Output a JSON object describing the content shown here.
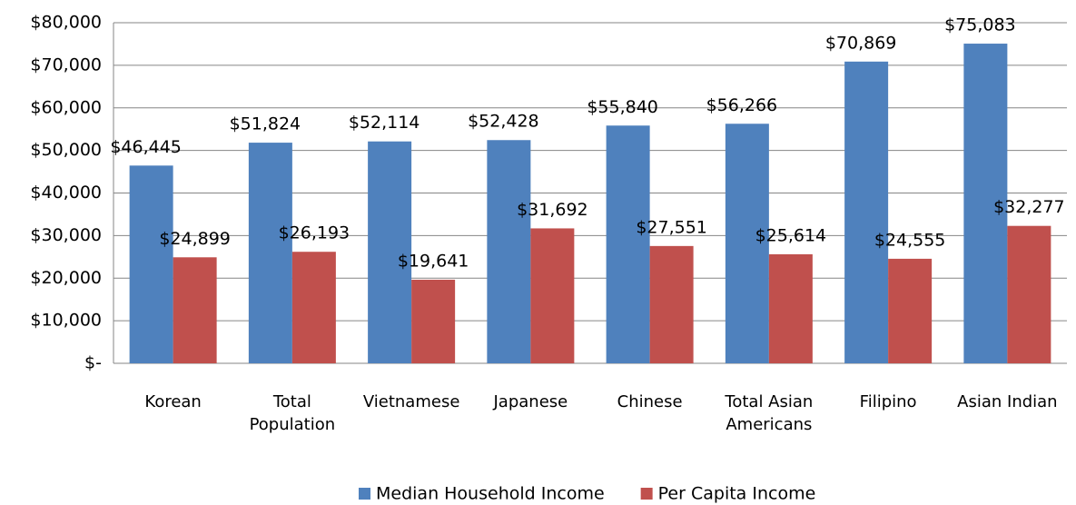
{
  "chart_data": {
    "type": "bar",
    "categories": [
      "Korean",
      "Total Population",
      "Vietnamese",
      "Japanese",
      "Chinese",
      "Total Asian Americans",
      "Filipino",
      "Asian Indian"
    ],
    "series": [
      {
        "name": "Median Household Income",
        "color": "#4f81bd",
        "values": [
          46445,
          51824,
          52114,
          52428,
          55840,
          56266,
          70869,
          75083
        ],
        "value_labels": [
          "$46,445",
          "$51,824",
          "$52,114",
          "$52,428",
          "$55,840",
          "$56,266",
          "$70,869",
          "$75,083"
        ]
      },
      {
        "name": "Per Capita Income",
        "color": "#c0504d",
        "values": [
          24899,
          26193,
          19641,
          31692,
          27551,
          25614,
          24555,
          32277
        ],
        "value_labels": [
          "$24,899",
          "$26,193",
          "$19,641",
          "$31,692",
          "$27,551",
          "$25,614",
          "$24,555",
          "$32,277"
        ]
      }
    ],
    "ylim": [
      0,
      80000
    ],
    "yticks": [
      {
        "value": 0,
        "label": "$-"
      },
      {
        "value": 10000,
        "label": "$10,000"
      },
      {
        "value": 20000,
        "label": "$20,000"
      },
      {
        "value": 30000,
        "label": "$30,000"
      },
      {
        "value": 40000,
        "label": "$40,000"
      },
      {
        "value": 50000,
        "label": "$50,000"
      },
      {
        "value": 60000,
        "label": "$60,000"
      },
      {
        "value": 70000,
        "label": "$70,000"
      },
      {
        "value": 80000,
        "label": "$80,000"
      }
    ],
    "grid": true,
    "legend": "bottom"
  }
}
